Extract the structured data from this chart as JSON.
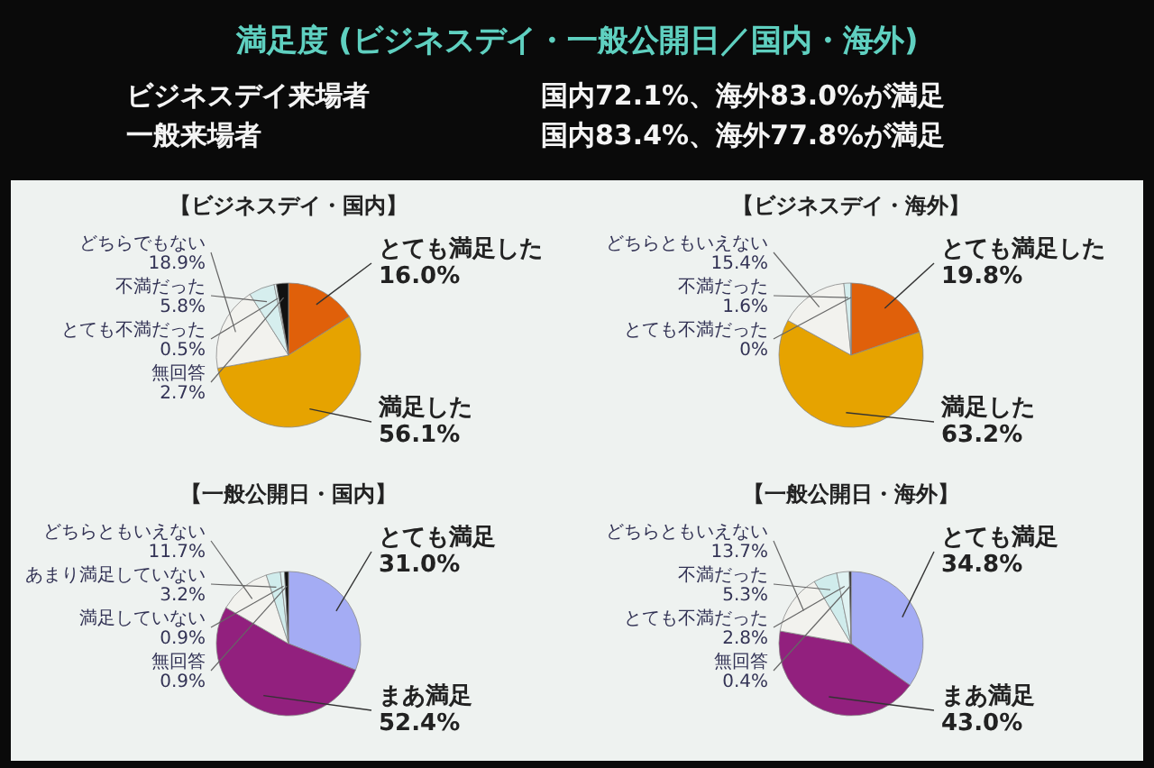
{
  "chart_data": [
    {
      "type": "other",
      "title": "満足度 (ビジネスデイ・一般公開日／国内・海外)",
      "annotations": [
        "ビジネスデイ来場者",
        "国内72.1%、海外83.0%が満足",
        "一般来場者",
        "国内83.4%、海外77.8%が満足"
      ]
    },
    {
      "type": "pie",
      "title": "【ビジネスデイ・国内】",
      "categories": [
        "とても満足した",
        "満足した",
        "どちらでもない",
        "不満だった",
        "とても不満だった",
        "無回答"
      ],
      "values": [
        16.0,
        56.1,
        18.9,
        5.8,
        0.5,
        2.7
      ],
      "value_labels": [
        "16.0%",
        "56.1%",
        "18.9%",
        "5.8%",
        "0.5%",
        "2.7%"
      ],
      "colors": [
        "#e0600a",
        "#e6a300",
        "#f2f2ee",
        "#d6eeee",
        "#e4f4f4",
        "#111111"
      ]
    },
    {
      "type": "pie",
      "title": "【ビジネスデイ・海外】",
      "categories": [
        "とても満足した",
        "満足した",
        "どちらともいえない",
        "不満だった",
        "とても不満だった"
      ],
      "values": [
        19.8,
        63.2,
        15.4,
        1.6,
        0
      ],
      "value_labels": [
        "19.8%",
        "63.2%",
        "15.4%",
        "1.6%",
        "0%"
      ],
      "colors": [
        "#e0600a",
        "#e6a300",
        "#f2f2ee",
        "#d6eeee",
        "#e4f4f4"
      ]
    },
    {
      "type": "pie",
      "title": "【一般公開日・国内】",
      "categories": [
        "とても満足",
        "まあ満足",
        "どちらともいえない",
        "あまり満足していない",
        "満足していない",
        "無回答"
      ],
      "values": [
        31.0,
        52.4,
        11.7,
        3.2,
        0.9,
        0.9
      ],
      "value_labels": [
        "31.0%",
        "52.4%",
        "11.7%",
        "3.2%",
        "0.9%",
        "0.9%"
      ],
      "colors": [
        "#a4acf4",
        "#92207e",
        "#f2f2ee",
        "#d0ecec",
        "#e0f2f2",
        "#111111"
      ]
    },
    {
      "type": "pie",
      "title": "【一般公開日・海外】",
      "categories": [
        "とても満足",
        "まあ満足",
        "どちらともいえない",
        "不満だった",
        "とても不満だった",
        "無回答"
      ],
      "values": [
        34.8,
        43.0,
        13.7,
        5.3,
        2.8,
        0.4
      ],
      "value_labels": [
        "34.8%",
        "43.0%",
        "13.7%",
        "5.3%",
        "2.8%",
        "0.4%"
      ],
      "colors": [
        "#a4acf4",
        "#92207e",
        "#f2f2ee",
        "#d0ecec",
        "#e0f2f2",
        "#111111"
      ]
    }
  ]
}
